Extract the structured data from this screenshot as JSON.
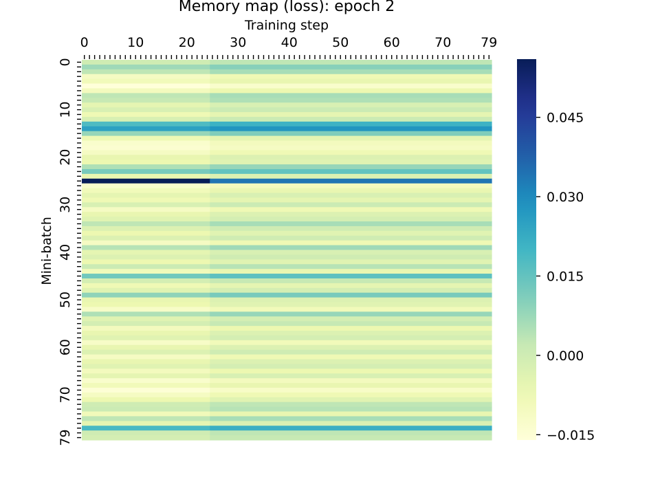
{
  "chart_data": {
    "type": "heatmap",
    "title": "Memory map (loss): epoch 2",
    "xlabel": "Training step",
    "ylabel": "Mini-batch",
    "x_ticks": [
      0,
      10,
      20,
      30,
      40,
      50,
      60,
      70,
      79
    ],
    "y_ticks": [
      0,
      10,
      20,
      30,
      40,
      50,
      60,
      70,
      79
    ],
    "x_range": [
      0,
      79
    ],
    "y_range": [
      0,
      79
    ],
    "colormap": "YlGnBu",
    "colorbar": {
      "ticks": [
        -0.015,
        0.0,
        0.015,
        0.03,
        0.045
      ],
      "tick_labels": [
        "−0.015",
        "0.000",
        "0.015",
        "0.030",
        "0.045"
      ],
      "range": [
        -0.016,
        0.056
      ]
    },
    "row_values": [
      0.003,
      0.01,
      0.006,
      -0.008,
      -0.006,
      -0.013,
      -0.007,
      0.006,
      0.005,
      -0.002,
      0.001,
      -0.005,
      0.001,
      0.021,
      0.028,
      0.011,
      -0.005,
      -0.01,
      -0.011,
      -0.008,
      -0.003,
      -0.004,
      0.008,
      0.015,
      -0.003,
      0.032,
      -0.01,
      -0.006,
      -0.002,
      -0.005,
      0.001,
      -0.008,
      -0.003,
      -0.001,
      0.006,
      0.0,
      -0.004,
      0.0,
      -0.008,
      0.007,
      -0.002,
      0.0,
      -0.004,
      0.004,
      -0.006,
      0.016,
      0.002,
      -0.005,
      -0.001,
      0.012,
      -0.003,
      -0.004,
      -0.009,
      0.008,
      -0.001,
      0.002,
      -0.007,
      -0.003,
      -0.001,
      -0.009,
      -0.003,
      0.0,
      -0.008,
      -0.003,
      -0.001,
      -0.007,
      -0.002,
      -0.01,
      -0.006,
      -0.012,
      -0.008,
      -0.004,
      0.003,
      0.004,
      -0.006,
      0.006,
      -0.002,
      0.022,
      0.003,
      0.002
    ],
    "special_rows": {
      "25": {
        "first_segment_value": 0.056,
        "first_segment_end_step": 24,
        "rest_value": 0.034
      }
    },
    "column_drift": {
      "split_step": 25,
      "left_offset": -0.003,
      "right_offset": 0.0
    }
  }
}
